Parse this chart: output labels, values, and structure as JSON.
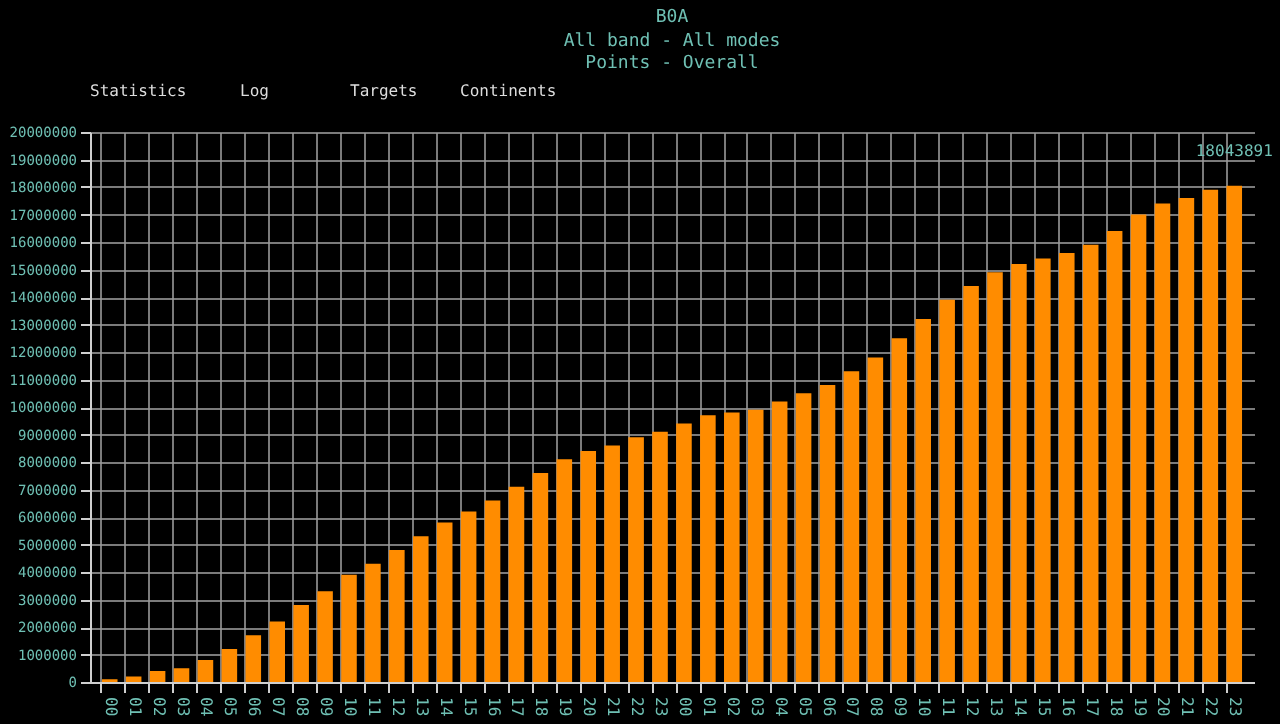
{
  "chart_data": {
    "type": "bar",
    "title": "B0A",
    "subtitle": [
      "All band - All modes",
      "Points - Overall"
    ],
    "annotations": [
      "Statistics",
      "Log",
      "Targets",
      "Continents"
    ],
    "categories": [
      "00",
      "01",
      "02",
      "03",
      "04",
      "05",
      "06",
      "07",
      "08",
      "09",
      "10",
      "11",
      "12",
      "13",
      "14",
      "15",
      "16",
      "17",
      "18",
      "19",
      "20",
      "21",
      "22",
      "23",
      "00",
      "01",
      "02",
      "03",
      "04",
      "05",
      "06",
      "07",
      "08",
      "09",
      "10",
      "11",
      "12",
      "13",
      "14",
      "15",
      "16",
      "17",
      "18",
      "19",
      "20",
      "21",
      "22",
      "23"
    ],
    "values": [
      100000,
      200000,
      400000,
      500000,
      800000,
      1200000,
      1700000,
      2200000,
      2800000,
      3300000,
      3900000,
      4300000,
      4800000,
      5300000,
      5800000,
      6200000,
      6600000,
      7100000,
      7600000,
      8100000,
      8400000,
      8600000,
      8900000,
      9100000,
      9400000,
      9700000,
      9800000,
      9900000,
      10200000,
      10500000,
      10800000,
      11300000,
      11800000,
      12500000,
      13200000,
      13900000,
      14400000,
      14900000,
      15200000,
      15400000,
      15600000,
      15900000,
      16400000,
      17000000,
      17400000,
      17600000,
      17900000,
      18043891
    ],
    "value_labels": [
      null,
      null,
      null,
      null,
      null,
      null,
      null,
      null,
      null,
      null,
      null,
      null,
      null,
      null,
      null,
      null,
      null,
      null,
      null,
      null,
      null,
      null,
      null,
      null,
      null,
      null,
      null,
      null,
      null,
      null,
      null,
      null,
      null,
      null,
      null,
      null,
      null,
      null,
      null,
      null,
      null,
      null,
      null,
      null,
      null,
      null,
      null,
      "18043891"
    ],
    "color": "#ff8c00",
    "ylim": [
      0,
      20000000
    ],
    "yticks": [
      0,
      1000000,
      2000000,
      3000000,
      4000000,
      5000000,
      6000000,
      7000000,
      8000000,
      9000000,
      10000000,
      11000000,
      12000000,
      13000000,
      14000000,
      15000000,
      16000000,
      17000000,
      18000000,
      19000000,
      20000000
    ],
    "grid": true
  }
}
